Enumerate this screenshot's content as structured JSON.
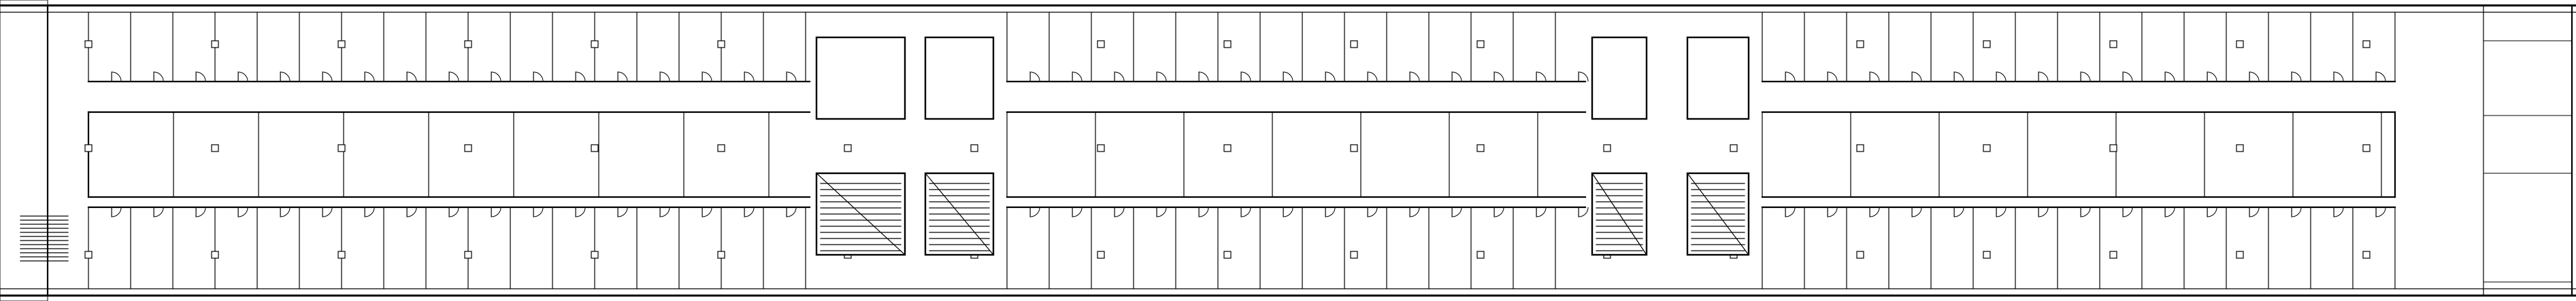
{
  "plan": {
    "background": "#ffffff",
    "ink": "#000000"
  }
}
